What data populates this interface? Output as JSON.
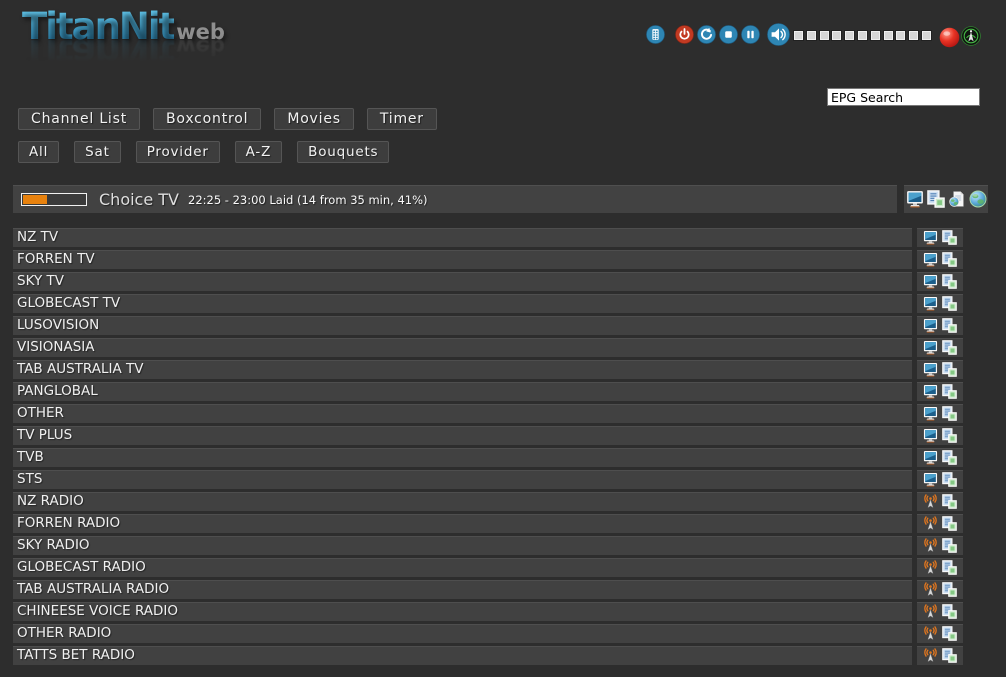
{
  "logo": {
    "title": "TitanNit",
    "suffix": "web"
  },
  "topbar": {
    "buttons": [
      {
        "name": "remote",
        "icon": "keypad-icon"
      },
      {
        "name": "power",
        "icon": "power-icon"
      },
      {
        "name": "restart",
        "icon": "refresh-icon"
      },
      {
        "name": "stop",
        "icon": "stop-icon"
      },
      {
        "name": "pause",
        "icon": "pause-icon"
      }
    ],
    "volume": {
      "icon": "speaker-icon",
      "segments": 11,
      "segment_color": "#d6d6d6"
    },
    "record_color": "#e02a1c",
    "stream_color": "#46b946",
    "button_color": "#2e86b4",
    "power_color": "#c23a22"
  },
  "search": {
    "value": "EPG Search"
  },
  "nav": {
    "items": [
      "Channel List",
      "Boxcontrol",
      "Movies",
      "Timer"
    ]
  },
  "filters": {
    "items": [
      "All",
      "Sat",
      "Provider",
      "A-Z",
      "Bouquets"
    ]
  },
  "now_playing": {
    "channel": "Choice TV",
    "epg": "22:25 - 23:00 Laid (14 from 35 min, 41%)",
    "progress_percent": 41,
    "progress_color": "#e8820e"
  },
  "channels": [
    {
      "name": "NZ TV",
      "type": "tv"
    },
    {
      "name": "FORREN TV",
      "type": "tv"
    },
    {
      "name": "SKY TV",
      "type": "tv"
    },
    {
      "name": "GLOBECAST TV",
      "type": "tv"
    },
    {
      "name": "LUSOVISION",
      "type": "tv"
    },
    {
      "name": "VISIONASIA",
      "type": "tv"
    },
    {
      "name": "TAB AUSTRALIA TV",
      "type": "tv"
    },
    {
      "name": "PANGLOBAL",
      "type": "tv"
    },
    {
      "name": "OTHER",
      "type": "tv"
    },
    {
      "name": "TV PLUS",
      "type": "tv"
    },
    {
      "name": "TVB",
      "type": "tv"
    },
    {
      "name": "STS",
      "type": "tv"
    },
    {
      "name": "NZ RADIO",
      "type": "radio"
    },
    {
      "name": "FORREN RADIO",
      "type": "radio"
    },
    {
      "name": "SKY RADIO",
      "type": "radio"
    },
    {
      "name": "GLOBECAST RADIO",
      "type": "radio"
    },
    {
      "name": "TAB AUSTRALIA RADIO",
      "type": "radio"
    },
    {
      "name": "CHINEESE VOICE RADIO",
      "type": "radio"
    },
    {
      "name": "OTHER RADIO",
      "type": "radio"
    },
    {
      "name": "TATTS BET RADIO",
      "type": "radio"
    }
  ]
}
